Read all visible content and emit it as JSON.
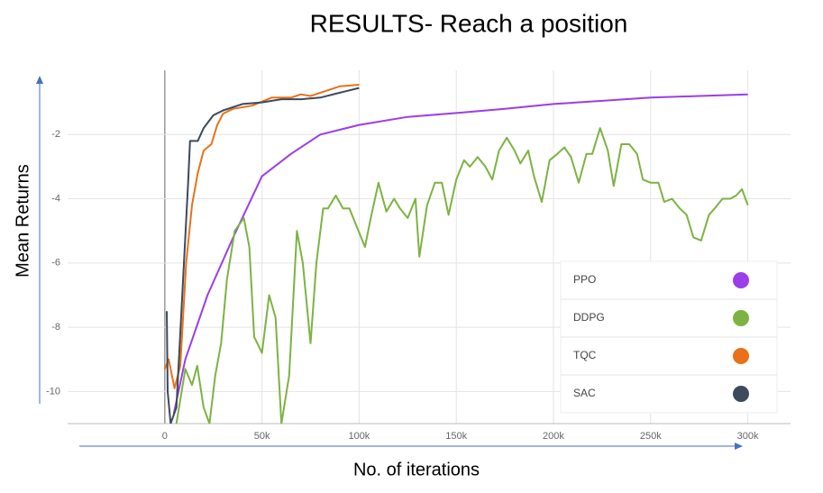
{
  "chart_data": {
    "type": "line",
    "title": "RESULTS- Reach a position",
    "x_label": "No. of iterations",
    "y_label": "Mean Returns",
    "xlim": [
      -50000,
      322000
    ],
    "ylim": [
      -11,
      0
    ],
    "xticks": [
      0,
      {
        "value": 50000,
        "label": "50k"
      },
      {
        "value": 100000,
        "label": "100k"
      },
      {
        "value": 150000,
        "label": "150k"
      },
      {
        "value": 200000,
        "label": "200k"
      },
      {
        "value": 250000,
        "label": "250k"
      },
      {
        "value": 300000,
        "label": "300k"
      }
    ],
    "yticks": [
      -2,
      -4,
      -6,
      -8,
      -10
    ],
    "grid": true,
    "legend": "lower right",
    "series": [
      {
        "name": "PPO",
        "color": "#9b3de8",
        "x": [
          4600,
          10600,
          22000,
          36000,
          50000,
          65000,
          80000,
          100000,
          125000,
          150000,
          175000,
          200000,
          225000,
          250000,
          275000,
          300000
        ],
        "values": [
          -10.7,
          -9.0,
          -7.0,
          -5.1,
          -3.3,
          -2.6,
          -2.0,
          -1.7,
          -1.45,
          -1.33,
          -1.2,
          -1.05,
          -0.95,
          -0.85,
          -0.8,
          -0.75
        ]
      },
      {
        "name": "DDPG",
        "color": "#7cb342",
        "x": [
          6000,
          10600,
          14000,
          16700,
          20000,
          23000,
          26000,
          29000,
          32000,
          36000,
          40700,
          43500,
          46000,
          50000,
          53700,
          57000,
          60000,
          64000,
          68000,
          71000,
          75000,
          78000,
          81500,
          84000,
          88000,
          91700,
          95000,
          99000,
          103000,
          106000,
          110000,
          114000,
          118000,
          121000,
          125000,
          129000,
          131000,
          135000,
          139000,
          142600,
          146000,
          150000,
          154000,
          157000,
          161000,
          165000,
          168500,
          172000,
          176000,
          180000,
          183000,
          187000,
          190000,
          194000,
          198000,
          202000,
          205600,
          209000,
          213000,
          217000,
          220000,
          224000,
          228000,
          231000,
          235000,
          239000,
          243000,
          246000,
          250000,
          254000,
          257000,
          261000,
          265000,
          268500,
          272000,
          276000,
          280000,
          283000,
          287000,
          291000,
          294000,
          297000,
          300000
        ],
        "values": [
          -11,
          -9.3,
          -9.8,
          -9.2,
          -10.5,
          -11,
          -9.5,
          -8.5,
          -6.5,
          -5.0,
          -4.6,
          -5.5,
          -8.3,
          -8.8,
          -7.0,
          -7.7,
          -11,
          -9.5,
          -5,
          -6,
          -8.5,
          -6,
          -4.3,
          -4.3,
          -3.9,
          -4.3,
          -4.3,
          -4.9,
          -5.5,
          -4.6,
          -3.5,
          -4.4,
          -4.0,
          -4.3,
          -4.6,
          -4.0,
          -5.8,
          -4.2,
          -3.5,
          -3.5,
          -4.5,
          -3.4,
          -2.8,
          -3.0,
          -2.7,
          -3.0,
          -3.4,
          -2.5,
          -2.1,
          -2.5,
          -2.9,
          -2.5,
          -3.3,
          -4.1,
          -2.8,
          -2.6,
          -2.4,
          -2.7,
          -3.5,
          -2.6,
          -2.6,
          -1.8,
          -2.5,
          -3.6,
          -2.3,
          -2.3,
          -2.6,
          -3.4,
          -3.5,
          -3.5,
          -4.1,
          -4.0,
          -4.3,
          -4.5,
          -5.2,
          -5.3,
          -4.5,
          -4.3,
          -4.0,
          -4.0,
          -3.9,
          -3.7,
          -4.2
        ]
      },
      {
        "name": "TQC",
        "color": "#e8711a",
        "x": [
          0,
          2000,
          5000,
          8000,
          11000,
          14000,
          17000,
          20000,
          24000,
          27000,
          30000,
          35000,
          45000,
          55000,
          65000,
          70000,
          75000,
          80000,
          85000,
          90000,
          100000
        ],
        "values": [
          -9.3,
          -9.0,
          -9.9,
          -9.2,
          -6.0,
          -4.2,
          -3.2,
          -2.5,
          -2.3,
          -1.7,
          -1.35,
          -1.2,
          -1.1,
          -0.85,
          -0.85,
          -0.75,
          -0.8,
          -0.7,
          -0.6,
          -0.5,
          -0.45
        ]
      },
      {
        "name": "SAC",
        "color": "#3c4a5c",
        "x": [
          1000,
          1500,
          3000,
          6000,
          9000,
          12000,
          13000,
          17000,
          20000,
          25000,
          30000,
          40000,
          50000,
          60000,
          70000,
          80000,
          90000,
          100000
        ],
        "values": [
          -7.5,
          -10,
          -11,
          -10.5,
          -7.0,
          -3.5,
          -2.2,
          -2.2,
          -1.8,
          -1.4,
          -1.25,
          -1.05,
          -1.0,
          -0.9,
          -0.9,
          -0.85,
          -0.7,
          -0.55
        ]
      }
    ]
  }
}
